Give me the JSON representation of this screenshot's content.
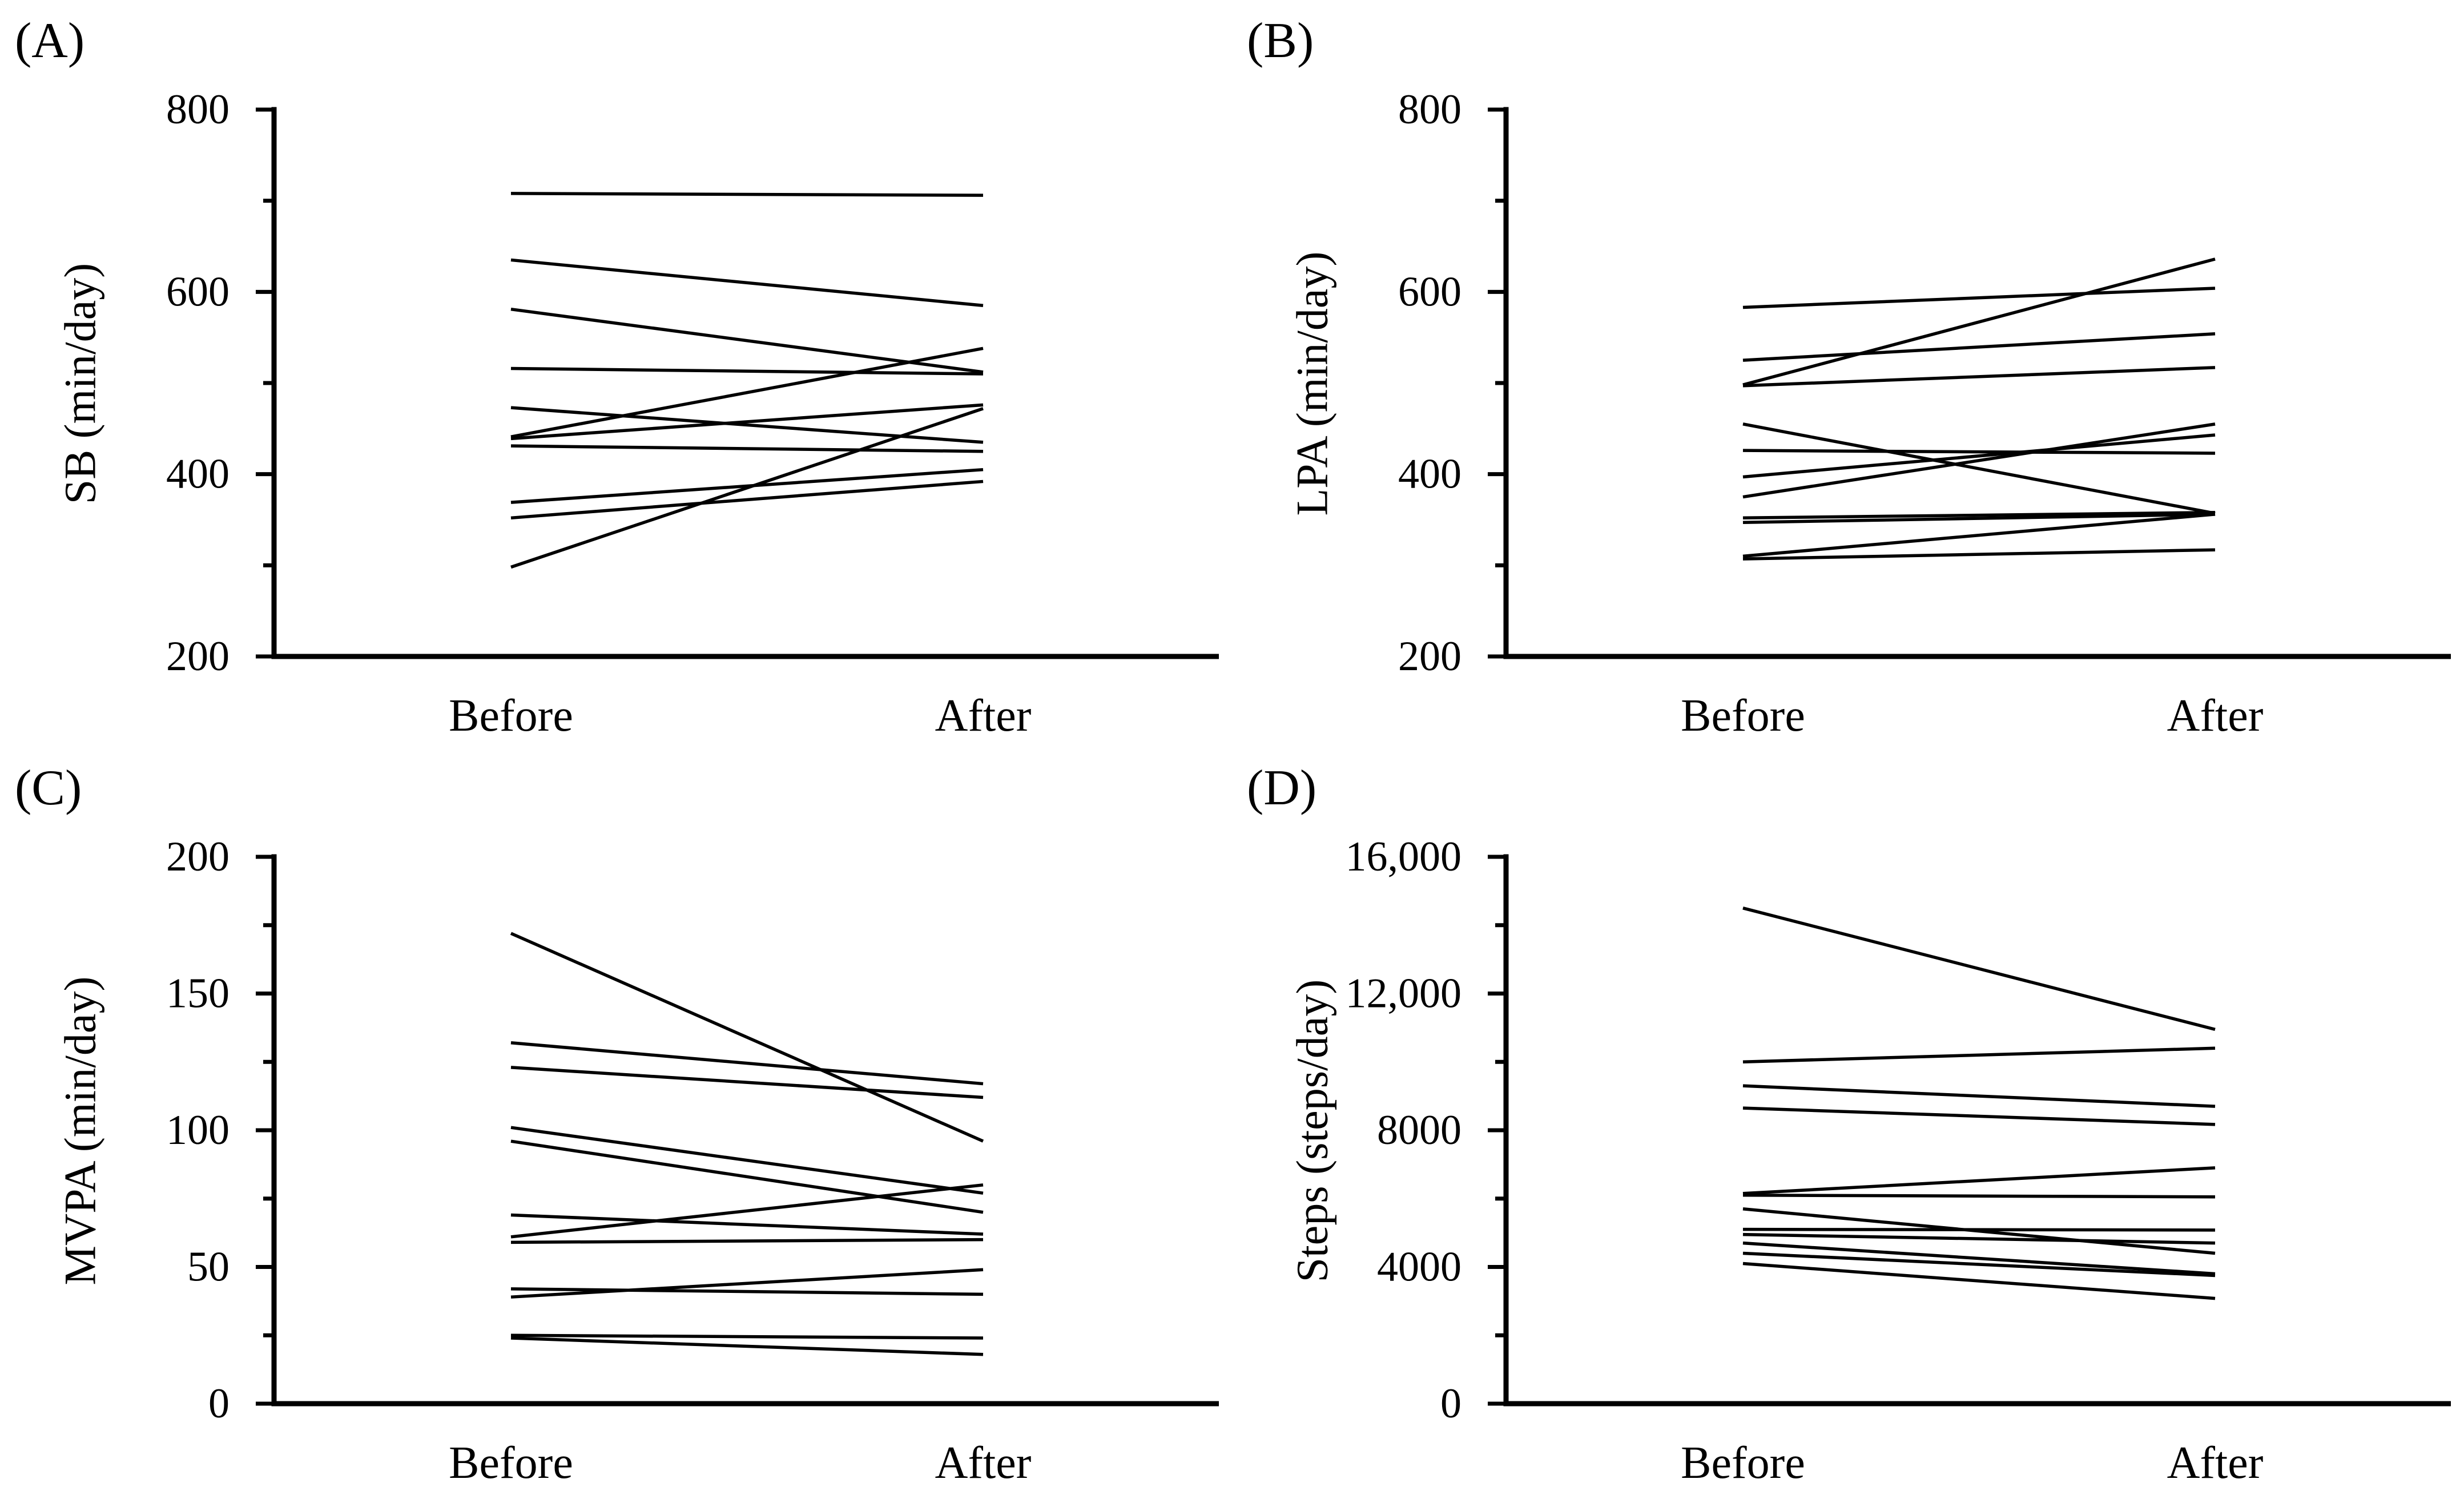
{
  "figure": {
    "background": "#ffffff",
    "line_color": "#000000",
    "text_color": "#000000"
  },
  "chart_data": {
    "type": "line",
    "subtype": "paired-before-after-slopegraph",
    "legend": "none",
    "grid": "off",
    "categories": [
      "Before",
      "After"
    ],
    "panels": [
      {
        "id": "A",
        "label": "(A)",
        "ylabel": "SB (min/day)",
        "ymin": 200,
        "ymax": 800,
        "major_ticks": [
          {
            "value": 800,
            "label": "800"
          },
          {
            "value": 600,
            "label": "600"
          },
          {
            "value": 400,
            "label": "400"
          },
          {
            "value": 200,
            "label": "200"
          }
        ],
        "minor_ticks": [
          700,
          500,
          300
        ],
        "categories": [
          "Before",
          "After"
        ],
        "series": [
          [
            708,
            706
          ],
          [
            635,
            585
          ],
          [
            581,
            512
          ],
          [
            516,
            510
          ],
          [
            473,
            435
          ],
          [
            441,
            538
          ],
          [
            439,
            476
          ],
          [
            431,
            425
          ],
          [
            369,
            405
          ],
          [
            352,
            392
          ],
          [
            298,
            472
          ]
        ]
      },
      {
        "id": "B",
        "label": "(B)",
        "ylabel": "LPA (min/day)",
        "ymin": 200,
        "ymax": 800,
        "major_ticks": [
          {
            "value": 800,
            "label": "800"
          },
          {
            "value": 600,
            "label": "600"
          },
          {
            "value": 400,
            "label": "400"
          },
          {
            "value": 200,
            "label": "200"
          }
        ],
        "minor_ticks": [
          700,
          500,
          300
        ],
        "categories": [
          "Before",
          "After"
        ],
        "series": [
          [
            583,
            604
          ],
          [
            525,
            554
          ],
          [
            498,
            636
          ],
          [
            497,
            517
          ],
          [
            455,
            357
          ],
          [
            426,
            423
          ],
          [
            397,
            443
          ],
          [
            375,
            455
          ],
          [
            352,
            358
          ],
          [
            347,
            356
          ],
          [
            310,
            356
          ],
          [
            307,
            317
          ]
        ]
      },
      {
        "id": "C",
        "label": "(C)",
        "ylabel": "MVPA (min/day)",
        "ymin": 0,
        "ymax": 200,
        "major_ticks": [
          {
            "value": 200,
            "label": "200"
          },
          {
            "value": 150,
            "label": "150"
          },
          {
            "value": 100,
            "label": "100"
          },
          {
            "value": 50,
            "label": "50"
          },
          {
            "value": 0,
            "label": "0"
          }
        ],
        "minor_ticks": [
          175,
          125,
          75,
          25
        ],
        "categories": [
          "Before",
          "After"
        ],
        "series": [
          [
            172,
            96
          ],
          [
            132,
            117
          ],
          [
            123,
            112
          ],
          [
            101,
            77
          ],
          [
            96,
            70
          ],
          [
            69,
            62
          ],
          [
            61,
            80
          ],
          [
            59,
            60
          ],
          [
            42,
            40
          ],
          [
            39,
            49
          ],
          [
            25,
            24
          ],
          [
            24,
            18
          ]
        ]
      },
      {
        "id": "D",
        "label": "(D)",
        "ylabel": "Steps (steps/day)",
        "ymin": 0,
        "ymax": 16000,
        "major_ticks": [
          {
            "value": 16000,
            "label": "16,000"
          },
          {
            "value": 12000,
            "label": "12,000"
          },
          {
            "value": 8000,
            "label": "8000"
          },
          {
            "value": 4000,
            "label": "4000"
          },
          {
            "value": 0,
            "label": "0"
          }
        ],
        "minor_ticks": [
          14000,
          10000,
          6000,
          2000
        ],
        "categories": [
          "Before",
          "After"
        ],
        "series": [
          [
            14500,
            10950
          ],
          [
            10000,
            10400
          ],
          [
            9300,
            8700
          ],
          [
            8650,
            8170
          ],
          [
            6150,
            6900
          ],
          [
            6100,
            6050
          ],
          [
            5700,
            4400
          ],
          [
            5100,
            5080
          ],
          [
            4950,
            4700
          ],
          [
            4700,
            3800
          ],
          [
            4400,
            3750
          ],
          [
            4100,
            3080
          ]
        ]
      }
    ]
  }
}
